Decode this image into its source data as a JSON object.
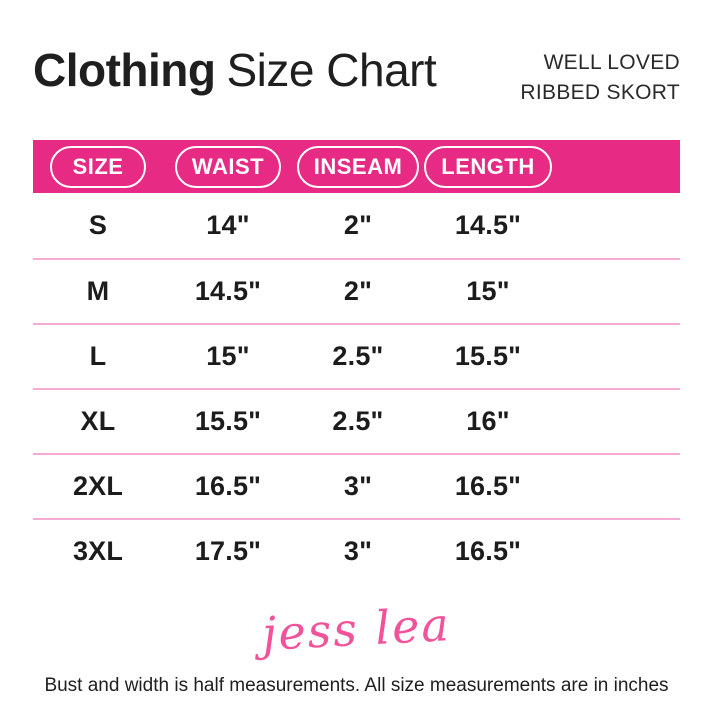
{
  "header": {
    "title_bold": "Clothing",
    "title_rest": "Size Chart",
    "product": {
      "line1": "WELL LOVED",
      "line2": "RIBBED SKORT"
    }
  },
  "chart_data": {
    "type": "table",
    "title": "Clothing Size Chart",
    "subtitle": "Well Loved Ribbed Skort",
    "columns": [
      "SIZE",
      "WAIST",
      "INSEAM",
      "LENGTH"
    ],
    "rows": [
      [
        "S",
        "14\"",
        "2\"",
        "14.5\""
      ],
      [
        "M",
        "14.5\"",
        "2\"",
        "15\""
      ],
      [
        "L",
        "15\"",
        "2.5\"",
        "15.5\""
      ],
      [
        "XL",
        "15.5\"",
        "2.5\"",
        "16\""
      ],
      [
        "2XL",
        "16.5\"",
        "3\"",
        "16.5\""
      ],
      [
        "3XL",
        "17.5\"",
        "3\"",
        "16.5\""
      ]
    ],
    "units": "inches"
  },
  "signature": "jess lea",
  "footer": "Bust and width is half measurements. All size measurements are in inches",
  "colors": {
    "band_pink": "#E72B85",
    "divider_pink": "#F5ABD2",
    "signature_pink": "#F0539A",
    "text_dark": "#1C1C1C"
  }
}
